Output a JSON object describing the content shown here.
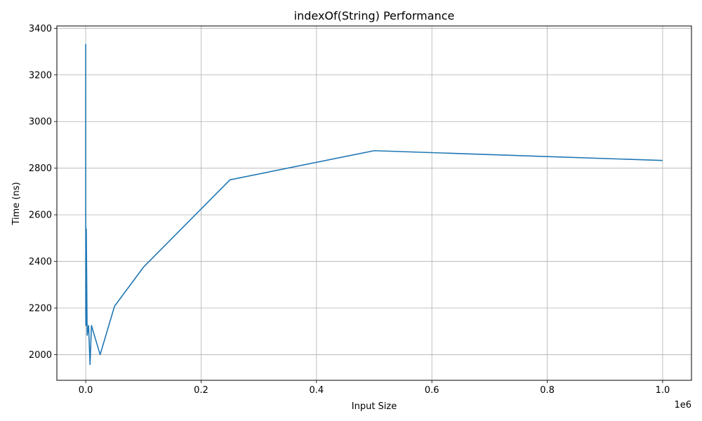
{
  "chart_data": {
    "type": "line",
    "title": "indexOf(String) Performance",
    "xlabel": "Input Size",
    "ylabel": "Time (ns)",
    "x_multiplier_label": "1e6",
    "xlim": [
      -50000,
      1050000
    ],
    "ylim": [
      1890,
      3410
    ],
    "x_ticks": [
      0,
      200000,
      400000,
      600000,
      800000,
      1000000
    ],
    "x_tick_labels": [
      "0.0",
      "0.2",
      "0.4",
      "0.6",
      "0.8",
      "1.0"
    ],
    "y_ticks": [
      2000,
      2200,
      2400,
      2600,
      2800,
      3000,
      3200,
      3400
    ],
    "y_tick_labels": [
      "2000",
      "2200",
      "2400",
      "2600",
      "2800",
      "3000",
      "3200",
      "3400"
    ],
    "grid": true,
    "series": [
      {
        "color": "#1f77b4",
        "x": [
          1,
          10,
          50,
          100,
          250,
          500,
          1000,
          2500,
          5000,
          7500,
          10000,
          25000,
          50000,
          100000,
          250000,
          500000,
          1000000
        ],
        "y": [
          3333,
          2750,
          2580,
          2167,
          2125,
          2125,
          2540,
          2083,
          2125,
          1958,
          2125,
          2000,
          2208,
          2375,
          2750,
          2875,
          2833
        ]
      }
    ]
  }
}
